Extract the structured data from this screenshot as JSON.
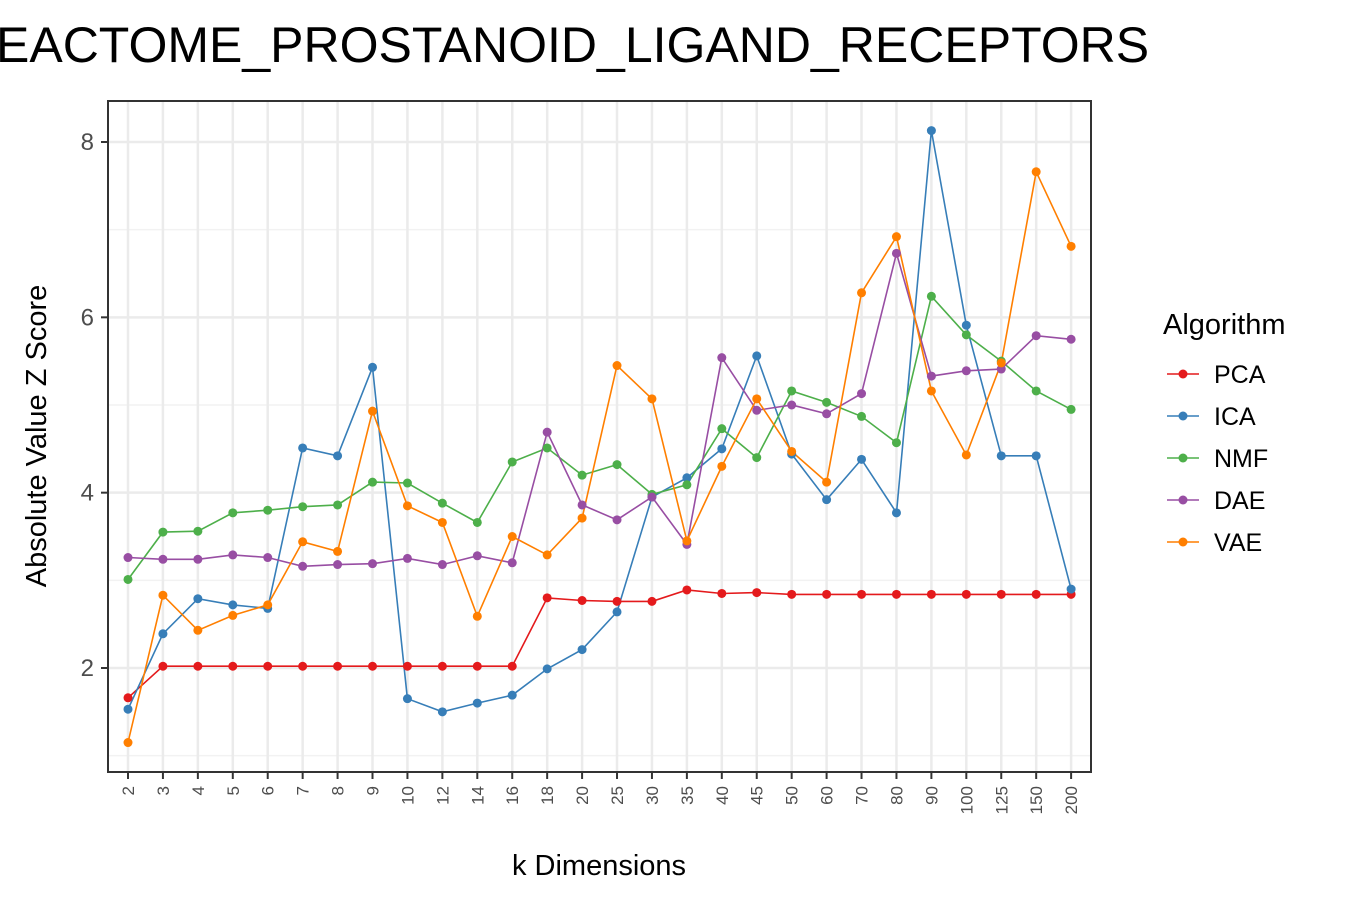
{
  "chart_data": {
    "type": "line",
    "title": "EACTOME_PROSTANOID_LIGAND_RECEPTORS",
    "xlabel": "k Dimensions",
    "ylabel": "Absolute Value Z Score",
    "categories": [
      "2",
      "3",
      "4",
      "5",
      "6",
      "7",
      "8",
      "9",
      "10",
      "12",
      "14",
      "16",
      "18",
      "20",
      "25",
      "30",
      "35",
      "40",
      "45",
      "50",
      "60",
      "70",
      "80",
      "90",
      "100",
      "125",
      "150",
      "200"
    ],
    "ylim": [
      0.75,
      8.5
    ],
    "yticks": [
      2,
      4,
      6,
      8
    ],
    "grid": true,
    "legend": {
      "title": "Algorithm",
      "position": "right"
    },
    "series": [
      {
        "name": "PCA",
        "color": "#e41a1c",
        "values": [
          1.66,
          2.02,
          2.02,
          2.02,
          2.02,
          2.02,
          2.02,
          2.02,
          2.02,
          2.02,
          2.02,
          2.02,
          2.8,
          2.77,
          2.76,
          2.76,
          2.89,
          2.85,
          2.86,
          2.84,
          2.84,
          2.84,
          2.84,
          2.84,
          2.84,
          2.84,
          2.84,
          2.84
        ]
      },
      {
        "name": "ICA",
        "color": "#377eb8",
        "values": [
          1.53,
          2.39,
          2.79,
          2.72,
          2.68,
          4.51,
          4.42,
          5.43,
          1.65,
          1.5,
          1.6,
          1.69,
          1.99,
          2.21,
          2.64,
          3.95,
          4.17,
          4.5,
          5.56,
          4.44,
          3.92,
          4.38,
          3.77,
          8.13,
          5.91,
          4.42,
          4.42,
          2.9
        ]
      },
      {
        "name": "NMF",
        "color": "#4daf4a",
        "values": [
          3.01,
          3.55,
          3.56,
          3.77,
          3.8,
          3.84,
          3.86,
          4.12,
          4.11,
          3.88,
          3.66,
          4.35,
          4.51,
          4.2,
          4.32,
          3.98,
          4.09,
          4.73,
          4.4,
          5.16,
          5.03,
          4.87,
          4.57,
          6.24,
          5.8,
          5.5,
          5.16,
          4.95
        ]
      },
      {
        "name": "DAE",
        "color": "#984ea3",
        "values": [
          3.26,
          3.24,
          3.24,
          3.29,
          3.26,
          3.16,
          3.18,
          3.19,
          3.25,
          3.18,
          3.28,
          3.2,
          4.69,
          3.86,
          3.69,
          3.95,
          3.41,
          5.54,
          4.94,
          5.0,
          4.9,
          5.13,
          6.73,
          5.33,
          5.39,
          5.41,
          5.79,
          5.75
        ]
      },
      {
        "name": "VAE",
        "color": "#ff7f00",
        "values": [
          1.15,
          2.83,
          2.43,
          2.6,
          2.72,
          3.44,
          3.33,
          4.93,
          3.85,
          3.66,
          2.59,
          3.5,
          3.29,
          3.71,
          5.45,
          5.07,
          3.45,
          4.3,
          5.07,
          4.47,
          4.12,
          6.28,
          6.92,
          5.16,
          4.43,
          5.48,
          7.66,
          6.81
        ]
      }
    ]
  }
}
